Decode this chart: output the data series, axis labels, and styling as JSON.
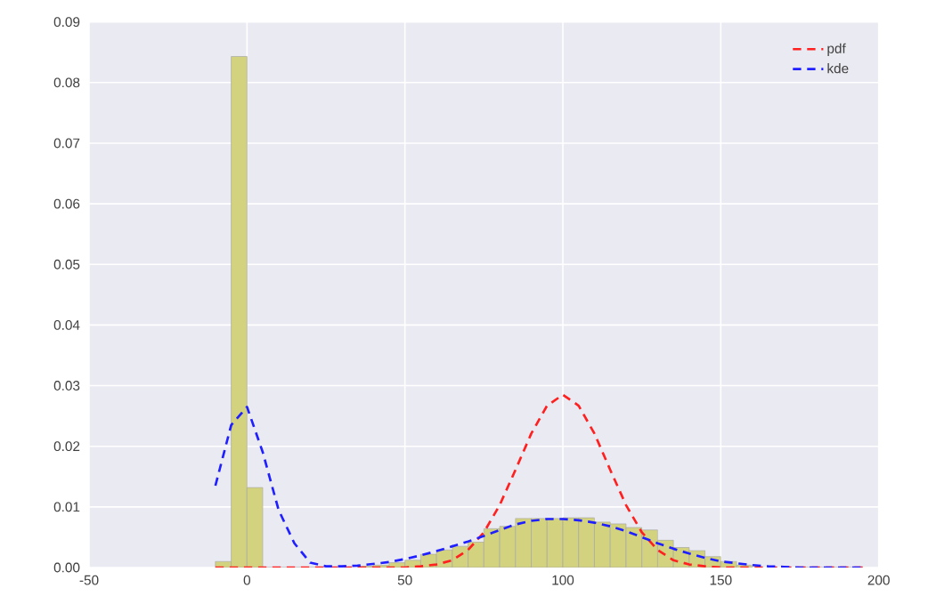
{
  "chart_data": {
    "type": "histogram",
    "xlim": [
      -50,
      200
    ],
    "ylim": [
      0,
      0.09
    ],
    "xticks": [
      -50,
      0,
      50,
      100,
      150,
      200
    ],
    "yticks": [
      {
        "value": 0,
        "label": "0.00"
      },
      {
        "value": 0.01,
        "label": "0.01"
      },
      {
        "value": 0.02,
        "label": "0.02"
      },
      {
        "value": 0.03,
        "label": "0.03"
      },
      {
        "value": 0.04,
        "label": "0.04"
      },
      {
        "value": 0.05,
        "label": "0.05"
      },
      {
        "value": 0.06,
        "label": "0.06"
      },
      {
        "value": 0.07,
        "label": "0.07"
      },
      {
        "value": 0.08,
        "label": "0.08"
      },
      {
        "value": 0.09,
        "label": "0.09"
      }
    ],
    "grid": true,
    "legend": "top right",
    "line_style": "dashed",
    "series": [
      {
        "color": "#d3d27f",
        "bins": [
          -10,
          -5,
          0,
          5,
          10,
          15,
          20,
          25,
          30,
          35,
          40,
          45,
          50,
          55,
          60,
          65,
          70,
          75,
          80,
          85,
          90,
          95,
          100,
          105,
          110,
          115,
          120,
          125,
          130,
          135,
          140,
          145,
          150,
          155,
          160,
          165,
          170,
          175,
          180,
          185,
          190,
          195
        ],
        "values": [
          0.001,
          0.0843,
          0.0132,
          0,
          0,
          0,
          0,
          0,
          null,
          0.0002,
          0.0004,
          0.0008,
          0.0012,
          0.0022,
          0.0029,
          0.0035,
          0.0042,
          0.0064,
          0.0068,
          0.0081,
          0.0081,
          0.0081,
          0.0082,
          0.0082,
          0.0075,
          0.0072,
          0.0066,
          0.0062,
          0.0045,
          0.0033,
          0.0028,
          0.0018,
          0.001,
          0.0004,
          null,
          null,
          null,
          0,
          0,
          0,
          0
        ]
      },
      {
        "name": "pdf",
        "type": "line",
        "color": "#ff2020",
        "x": [
          -10,
          -5,
          0,
          5,
          10,
          15,
          20,
          25,
          30,
          35,
          40,
          45,
          50,
          55,
          60,
          65,
          70,
          75,
          80,
          85,
          90,
          95,
          100,
          105,
          110,
          115,
          120,
          125,
          130,
          135,
          140,
          145,
          150,
          155,
          160,
          165,
          170,
          175,
          180,
          185,
          190,
          195
        ],
        "values": [
          0,
          0,
          0,
          0,
          0,
          0,
          0,
          0,
          0,
          0,
          0,
          0,
          0,
          0.0002,
          0.0005,
          0.0012,
          0.0029,
          0.0058,
          0.0103,
          0.0161,
          0.0221,
          0.0267,
          0.0285,
          0.0267,
          0.0221,
          0.0161,
          0.0103,
          0.0058,
          0.0029,
          0.0012,
          0.0005,
          0.0002,
          0,
          0,
          0,
          0,
          0,
          0,
          0,
          0,
          0,
          0
        ]
      },
      {
        "name": "kde",
        "type": "line",
        "color": "#1f1fff",
        "x": [
          -10,
          -5,
          0,
          5,
          10,
          15,
          20,
          25,
          30,
          35,
          40,
          45,
          50,
          55,
          60,
          65,
          70,
          75,
          80,
          85,
          90,
          95,
          100,
          105,
          110,
          115,
          120,
          125,
          130,
          135,
          140,
          145,
          150,
          155,
          160,
          165,
          170,
          175,
          180,
          185,
          190,
          195
        ],
        "values": [
          0.0135,
          0.0235,
          0.0265,
          0.019,
          0.0095,
          0.004,
          0.0008,
          0.0002,
          0.0002,
          0.0003,
          0.0006,
          0.0009,
          0.0014,
          0.002,
          0.0027,
          0.0035,
          0.0043,
          0.0052,
          0.0062,
          0.0071,
          0.0077,
          0.008,
          0.008,
          0.0078,
          0.0074,
          0.0068,
          0.006,
          0.005,
          0.004,
          0.0031,
          0.0023,
          0.0016,
          0.001,
          0.0007,
          0.0004,
          0.0002,
          0.0001,
          0,
          0,
          0,
          0,
          0
        ]
      }
    ]
  }
}
